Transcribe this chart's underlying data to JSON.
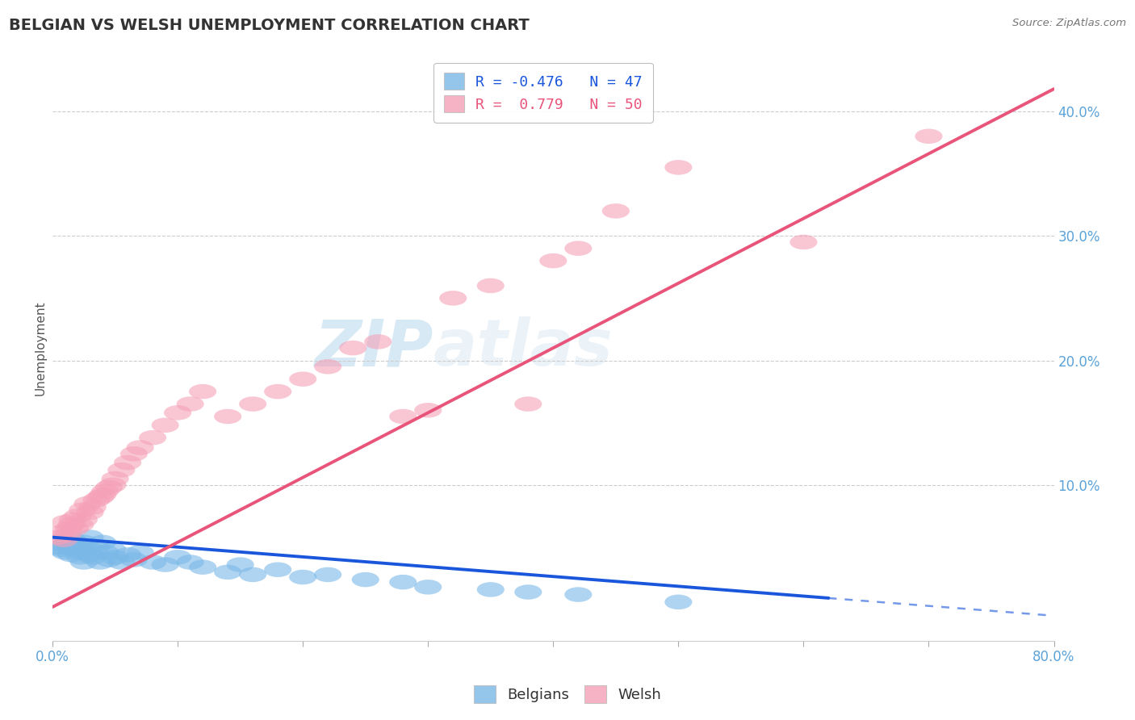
{
  "title": "BELGIAN VS WELSH UNEMPLOYMENT CORRELATION CHART",
  "source_text": "Source: ZipAtlas.com",
  "ylabel": "Unemployment",
  "xlim": [
    0.0,
    0.8
  ],
  "ylim": [
    -0.025,
    0.445
  ],
  "x_ticks": [
    0.0,
    0.1,
    0.2,
    0.3,
    0.4,
    0.5,
    0.6,
    0.7,
    0.8
  ],
  "x_tick_labels": [
    "0.0%",
    "",
    "",
    "",
    "",
    "",
    "",
    "",
    "80.0%"
  ],
  "y_ticks_right": [
    0.1,
    0.2,
    0.3,
    0.4
  ],
  "y_tick_labels_right": [
    "10.0%",
    "20.0%",
    "30.0%",
    "40.0%"
  ],
  "blue_color": "#7ab8e8",
  "pink_color": "#f5a0b8",
  "blue_line_color": "#1a56db",
  "pink_line_color": "#e8547a",
  "legend_r_blue": "R = -0.476",
  "legend_n_blue": "N = 47",
  "legend_r_pink": "R =  0.779",
  "legend_n_pink": "N = 50",
  "legend_label_blue": "Belgians",
  "legend_label_pink": "Welsh",
  "watermark_zip": "ZIP",
  "watermark_atlas": "atlas",
  "blue_scatter_x": [
    0.005,
    0.008,
    0.01,
    0.01,
    0.012,
    0.014,
    0.015,
    0.016,
    0.018,
    0.02,
    0.022,
    0.024,
    0.025,
    0.025,
    0.028,
    0.03,
    0.03,
    0.032,
    0.035,
    0.038,
    0.04,
    0.042,
    0.045,
    0.048,
    0.05,
    0.055,
    0.06,
    0.065,
    0.07,
    0.08,
    0.09,
    0.1,
    0.11,
    0.12,
    0.14,
    0.15,
    0.16,
    0.18,
    0.2,
    0.22,
    0.25,
    0.28,
    0.3,
    0.35,
    0.38,
    0.42,
    0.5
  ],
  "blue_scatter_y": [
    0.05,
    0.048,
    0.052,
    0.046,
    0.054,
    0.05,
    0.044,
    0.056,
    0.048,
    0.052,
    0.042,
    0.046,
    0.054,
    0.038,
    0.05,
    0.044,
    0.058,
    0.042,
    0.05,
    0.038,
    0.054,
    0.046,
    0.04,
    0.048,
    0.042,
    0.038,
    0.044,
    0.04,
    0.046,
    0.038,
    0.036,
    0.042,
    0.038,
    0.034,
    0.03,
    0.036,
    0.028,
    0.032,
    0.026,
    0.028,
    0.024,
    0.022,
    0.018,
    0.016,
    0.014,
    0.012,
    0.006
  ],
  "pink_scatter_x": [
    0.005,
    0.007,
    0.009,
    0.01,
    0.012,
    0.013,
    0.015,
    0.016,
    0.018,
    0.02,
    0.022,
    0.024,
    0.025,
    0.028,
    0.03,
    0.032,
    0.035,
    0.038,
    0.04,
    0.042,
    0.045,
    0.048,
    0.05,
    0.055,
    0.06,
    0.065,
    0.07,
    0.08,
    0.09,
    0.1,
    0.11,
    0.12,
    0.14,
    0.16,
    0.18,
    0.2,
    0.22,
    0.24,
    0.26,
    0.28,
    0.3,
    0.32,
    0.35,
    0.38,
    0.4,
    0.42,
    0.45,
    0.5,
    0.6,
    0.7
  ],
  "pink_scatter_y": [
    0.058,
    0.062,
    0.056,
    0.07,
    0.06,
    0.065,
    0.068,
    0.072,
    0.065,
    0.075,
    0.068,
    0.08,
    0.072,
    0.085,
    0.078,
    0.082,
    0.088,
    0.09,
    0.092,
    0.095,
    0.098,
    0.1,
    0.105,
    0.112,
    0.118,
    0.125,
    0.13,
    0.138,
    0.148,
    0.158,
    0.165,
    0.175,
    0.155,
    0.165,
    0.175,
    0.185,
    0.195,
    0.21,
    0.215,
    0.155,
    0.16,
    0.25,
    0.26,
    0.165,
    0.28,
    0.29,
    0.32,
    0.355,
    0.295,
    0.38
  ],
  "blue_line_x": [
    0.0,
    0.8
  ],
  "blue_line_y": [
    0.058,
    -0.005
  ],
  "blue_line_solid_end_x": 0.62,
  "pink_line_x": [
    0.0,
    0.8
  ],
  "pink_line_y": [
    0.002,
    0.418
  ],
  "grid_color": "#cccccc",
  "grid_style": "--",
  "background_color": "#ffffff",
  "title_color": "#333333",
  "axis_tick_color": "#5ba3d9"
}
